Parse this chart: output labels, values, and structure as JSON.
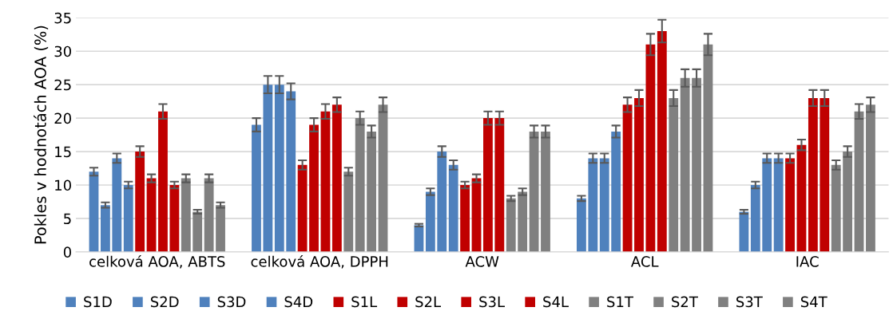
{
  "chart_data": {
    "type": "bar",
    "ylabel": "Pokles v hodnotách AOA (%)",
    "categories": [
      "celková AOA, ABTS",
      "celková AOA, DPPH",
      "ACW",
      "ACL",
      "IAC"
    ],
    "series": [
      {
        "name": "S1D",
        "color": "#4f81bd",
        "values": [
          12,
          19,
          4,
          8,
          6
        ],
        "errors": [
          0.6,
          1.0,
          0.2,
          0.4,
          0.3
        ]
      },
      {
        "name": "S2D",
        "color": "#4f81bd",
        "values": [
          7,
          25,
          9,
          14,
          10
        ],
        "errors": [
          0.4,
          1.3,
          0.5,
          0.7,
          0.5
        ]
      },
      {
        "name": "S3D",
        "color": "#4f81bd",
        "values": [
          14,
          25,
          15,
          14,
          14
        ],
        "errors": [
          0.7,
          1.3,
          0.8,
          0.7,
          0.7
        ]
      },
      {
        "name": "S4D",
        "color": "#4f81bd",
        "values": [
          10,
          24,
          13,
          18,
          14
        ],
        "errors": [
          0.5,
          1.2,
          0.7,
          0.9,
          0.7
        ]
      },
      {
        "name": "S1L",
        "color": "#c00000",
        "values": [
          15,
          13,
          10,
          22,
          14
        ],
        "errors": [
          0.8,
          0.7,
          0.5,
          1.1,
          0.7
        ]
      },
      {
        "name": "S2L",
        "color": "#c00000",
        "values": [
          11,
          19,
          11,
          23,
          16
        ],
        "errors": [
          0.6,
          1.0,
          0.6,
          1.2,
          0.8
        ]
      },
      {
        "name": "S3L",
        "color": "#c00000",
        "values": [
          21,
          21,
          20,
          31,
          23
        ],
        "errors": [
          1.1,
          1.1,
          1.0,
          1.6,
          1.2
        ]
      },
      {
        "name": "S4L",
        "color": "#c00000",
        "values": [
          10,
          22,
          20,
          33,
          23
        ],
        "errors": [
          0.5,
          1.1,
          1.0,
          1.7,
          1.2
        ]
      },
      {
        "name": "S1T",
        "color": "#808080",
        "values": [
          11,
          12,
          8,
          23,
          13
        ],
        "errors": [
          0.6,
          0.6,
          0.4,
          1.2,
          0.7
        ]
      },
      {
        "name": "S2T",
        "color": "#808080",
        "values": [
          6,
          20,
          9,
          26,
          15
        ],
        "errors": [
          0.3,
          1.0,
          0.5,
          1.3,
          0.8
        ]
      },
      {
        "name": "S3T",
        "color": "#808080",
        "values": [
          11,
          18,
          18,
          26,
          21
        ],
        "errors": [
          0.6,
          0.9,
          0.9,
          1.3,
          1.1
        ]
      },
      {
        "name": "S4T",
        "color": "#808080",
        "values": [
          7,
          22,
          18,
          31,
          22
        ],
        "errors": [
          0.4,
          1.1,
          0.9,
          1.6,
          1.1
        ]
      }
    ],
    "ylim": [
      0,
      35
    ],
    "yticks": [
      0,
      5,
      10,
      15,
      20,
      25,
      30,
      35
    ],
    "grid": "y",
    "legend": "bottom"
  }
}
